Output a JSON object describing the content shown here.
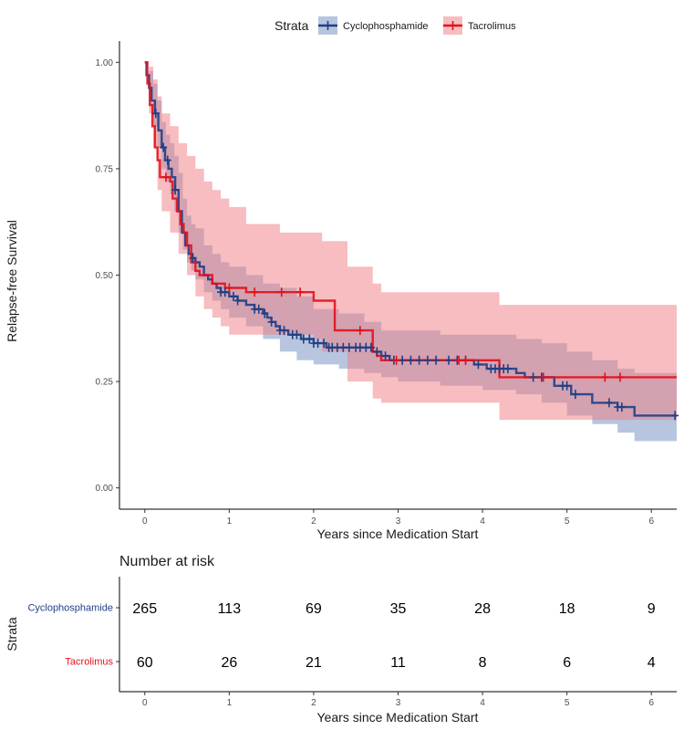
{
  "legend": {
    "title": "Strata",
    "items": [
      {
        "label": "Cyclophosphamide",
        "color": "#1f3f87",
        "fill": "#6f8ebd"
      },
      {
        "label": "Tacrolimus",
        "color": "#e3101b",
        "fill": "#f07b82"
      }
    ]
  },
  "survival_plot": {
    "ylabel": "Relapse-free Survival",
    "xlabel": "Years since Medication Start",
    "xticks": [
      "0",
      "1",
      "2",
      "3",
      "4",
      "5",
      "6"
    ],
    "yticks": [
      "0.00",
      "0.25",
      "0.50",
      "0.75",
      "1.00"
    ]
  },
  "risk_table": {
    "title": "Number at risk",
    "ylabel": "Strata",
    "xlabel": "Years since Medication Start",
    "xticks": [
      "0",
      "1",
      "2",
      "3",
      "4",
      "5",
      "6"
    ],
    "rows": [
      {
        "label": "Cyclophosphamide",
        "color": "#1f3f87",
        "values": [
          "265",
          "113",
          "69",
          "35",
          "28",
          "18",
          "9"
        ]
      },
      {
        "label": "Tacrolimus",
        "color": "#e3101b",
        "values": [
          "60",
          "26",
          "21",
          "11",
          "8",
          "6",
          "4"
        ]
      }
    ]
  },
  "chart_data": {
    "type": "line",
    "title": "",
    "xlabel": "Years since Medication Start",
    "ylabel": "Relapse-free Survival",
    "xlim": [
      -0.3,
      6.3
    ],
    "ylim": [
      -0.05,
      1.05
    ],
    "grid": false,
    "legend_position": "top",
    "series": [
      {
        "name": "Cyclophosphamide",
        "color": "#1f3f87",
        "band_color": "#6f8ebd",
        "steps": [
          [
            0,
            1.0
          ],
          [
            0.02,
            0.97
          ],
          [
            0.05,
            0.94
          ],
          [
            0.08,
            0.91
          ],
          [
            0.12,
            0.88
          ],
          [
            0.16,
            0.84
          ],
          [
            0.2,
            0.8
          ],
          [
            0.24,
            0.77
          ],
          [
            0.28,
            0.75
          ],
          [
            0.32,
            0.73
          ],
          [
            0.36,
            0.7
          ],
          [
            0.4,
            0.65
          ],
          [
            0.44,
            0.6
          ],
          [
            0.48,
            0.57
          ],
          [
            0.52,
            0.55
          ],
          [
            0.56,
            0.54
          ],
          [
            0.6,
            0.53
          ],
          [
            0.65,
            0.52
          ],
          [
            0.7,
            0.5
          ],
          [
            0.75,
            0.49
          ],
          [
            0.8,
            0.48
          ],
          [
            0.85,
            0.47
          ],
          [
            0.9,
            0.46
          ],
          [
            1.0,
            0.45
          ],
          [
            1.1,
            0.44
          ],
          [
            1.2,
            0.43
          ],
          [
            1.3,
            0.42
          ],
          [
            1.4,
            0.41
          ],
          [
            1.45,
            0.4
          ],
          [
            1.5,
            0.39
          ],
          [
            1.55,
            0.38
          ],
          [
            1.6,
            0.37
          ],
          [
            1.7,
            0.36
          ],
          [
            1.85,
            0.35
          ],
          [
            2.0,
            0.34
          ],
          [
            2.15,
            0.33
          ],
          [
            2.4,
            0.33
          ],
          [
            2.7,
            0.32
          ],
          [
            2.8,
            0.31
          ],
          [
            2.9,
            0.3
          ],
          [
            3.3,
            0.3
          ],
          [
            3.5,
            0.3
          ],
          [
            3.9,
            0.29
          ],
          [
            4.05,
            0.28
          ],
          [
            4.4,
            0.27
          ],
          [
            4.5,
            0.26
          ],
          [
            4.85,
            0.24
          ],
          [
            5.05,
            0.22
          ],
          [
            5.3,
            0.2
          ],
          [
            5.6,
            0.19
          ],
          [
            5.8,
            0.17
          ],
          [
            6.3,
            0.17
          ]
        ],
        "lower": [
          [
            0,
            1.0
          ],
          [
            0.05,
            0.91
          ],
          [
            0.1,
            0.85
          ],
          [
            0.15,
            0.8
          ],
          [
            0.2,
            0.75
          ],
          [
            0.25,
            0.72
          ],
          [
            0.3,
            0.69
          ],
          [
            0.35,
            0.65
          ],
          [
            0.4,
            0.6
          ],
          [
            0.45,
            0.56
          ],
          [
            0.5,
            0.53
          ],
          [
            0.55,
            0.51
          ],
          [
            0.6,
            0.49
          ],
          [
            0.7,
            0.46
          ],
          [
            0.8,
            0.44
          ],
          [
            0.9,
            0.42
          ],
          [
            1.0,
            0.4
          ],
          [
            1.2,
            0.38
          ],
          [
            1.4,
            0.35
          ],
          [
            1.6,
            0.32
          ],
          [
            1.8,
            0.3
          ],
          [
            2.0,
            0.29
          ],
          [
            2.3,
            0.28
          ],
          [
            2.6,
            0.27
          ],
          [
            2.8,
            0.26
          ],
          [
            3.0,
            0.25
          ],
          [
            3.5,
            0.24
          ],
          [
            4.0,
            0.23
          ],
          [
            4.4,
            0.22
          ],
          [
            4.7,
            0.2
          ],
          [
            5.0,
            0.17
          ],
          [
            5.3,
            0.15
          ],
          [
            5.6,
            0.13
          ],
          [
            5.8,
            0.11
          ],
          [
            6.3,
            0.11
          ]
        ],
        "upper": [
          [
            0,
            1.0
          ],
          [
            0.05,
            0.98
          ],
          [
            0.1,
            0.95
          ],
          [
            0.15,
            0.91
          ],
          [
            0.2,
            0.86
          ],
          [
            0.25,
            0.83
          ],
          [
            0.3,
            0.81
          ],
          [
            0.35,
            0.78
          ],
          [
            0.4,
            0.74
          ],
          [
            0.45,
            0.68
          ],
          [
            0.5,
            0.64
          ],
          [
            0.55,
            0.62
          ],
          [
            0.6,
            0.61
          ],
          [
            0.7,
            0.57
          ],
          [
            0.8,
            0.55
          ],
          [
            0.9,
            0.53
          ],
          [
            1.0,
            0.52
          ],
          [
            1.2,
            0.5
          ],
          [
            1.4,
            0.48
          ],
          [
            1.6,
            0.47
          ],
          [
            1.8,
            0.45
          ],
          [
            2.0,
            0.42
          ],
          [
            2.3,
            0.41
          ],
          [
            2.6,
            0.39
          ],
          [
            2.8,
            0.37
          ],
          [
            3.0,
            0.37
          ],
          [
            3.5,
            0.36
          ],
          [
            4.0,
            0.36
          ],
          [
            4.4,
            0.35
          ],
          [
            4.7,
            0.34
          ],
          [
            5.0,
            0.32
          ],
          [
            5.3,
            0.3
          ],
          [
            5.6,
            0.28
          ],
          [
            5.8,
            0.27
          ],
          [
            6.3,
            0.27
          ]
        ],
        "censor": [
          0.13,
          0.22,
          0.27,
          0.36,
          0.57,
          0.9,
          0.95,
          1.05,
          1.1,
          1.3,
          1.35,
          1.42,
          1.5,
          1.6,
          1.65,
          1.75,
          1.8,
          1.88,
          1.95,
          2.0,
          2.05,
          2.12,
          2.18,
          2.22,
          2.28,
          2.35,
          2.42,
          2.5,
          2.55,
          2.62,
          2.68,
          2.75,
          2.85,
          2.95,
          3.05,
          3.15,
          3.25,
          3.35,
          3.45,
          3.6,
          3.7,
          3.8,
          3.95,
          4.1,
          4.15,
          4.2,
          4.25,
          4.3,
          4.6,
          4.7,
          4.95,
          5.0,
          5.1,
          5.5,
          5.6,
          5.65,
          6.28
        ]
      },
      {
        "name": "Tacrolimus",
        "color": "#e3101b",
        "band_color": "#f07b82",
        "steps": [
          [
            0,
            1.0
          ],
          [
            0.03,
            0.95
          ],
          [
            0.06,
            0.9
          ],
          [
            0.09,
            0.85
          ],
          [
            0.12,
            0.8
          ],
          [
            0.15,
            0.77
          ],
          [
            0.18,
            0.73
          ],
          [
            0.3,
            0.72
          ],
          [
            0.33,
            0.68
          ],
          [
            0.38,
            0.65
          ],
          [
            0.42,
            0.62
          ],
          [
            0.46,
            0.6
          ],
          [
            0.5,
            0.57
          ],
          [
            0.55,
            0.53
          ],
          [
            0.6,
            0.51
          ],
          [
            0.65,
            0.5
          ],
          [
            0.8,
            0.48
          ],
          [
            0.95,
            0.47
          ],
          [
            1.1,
            0.47
          ],
          [
            1.2,
            0.46
          ],
          [
            2.0,
            0.44
          ],
          [
            2.25,
            0.37
          ],
          [
            2.7,
            0.32
          ],
          [
            2.75,
            0.31
          ],
          [
            2.8,
            0.3
          ],
          [
            4.2,
            0.26
          ],
          [
            6.3,
            0.26
          ]
        ],
        "lower": [
          [
            0,
            1.0
          ],
          [
            0.05,
            0.88
          ],
          [
            0.1,
            0.8
          ],
          [
            0.15,
            0.7
          ],
          [
            0.2,
            0.65
          ],
          [
            0.3,
            0.6
          ],
          [
            0.4,
            0.55
          ],
          [
            0.5,
            0.5
          ],
          [
            0.6,
            0.45
          ],
          [
            0.7,
            0.42
          ],
          [
            0.8,
            0.4
          ],
          [
            0.9,
            0.38
          ],
          [
            1.0,
            0.36
          ],
          [
            1.2,
            0.36
          ],
          [
            1.6,
            0.36
          ],
          [
            2.0,
            0.35
          ],
          [
            2.1,
            0.32
          ],
          [
            2.4,
            0.25
          ],
          [
            2.7,
            0.21
          ],
          [
            2.8,
            0.2
          ],
          [
            4.2,
            0.16
          ],
          [
            6.3,
            0.16
          ]
        ],
        "upper": [
          [
            0,
            1.0
          ],
          [
            0.05,
            0.99
          ],
          [
            0.1,
            0.96
          ],
          [
            0.15,
            0.92
          ],
          [
            0.2,
            0.88
          ],
          [
            0.3,
            0.85
          ],
          [
            0.4,
            0.81
          ],
          [
            0.5,
            0.78
          ],
          [
            0.6,
            0.75
          ],
          [
            0.7,
            0.72
          ],
          [
            0.8,
            0.7
          ],
          [
            0.9,
            0.68
          ],
          [
            1.0,
            0.66
          ],
          [
            1.2,
            0.62
          ],
          [
            1.6,
            0.6
          ],
          [
            2.0,
            0.6
          ],
          [
            2.1,
            0.58
          ],
          [
            2.4,
            0.52
          ],
          [
            2.7,
            0.48
          ],
          [
            2.8,
            0.46
          ],
          [
            4.2,
            0.43
          ],
          [
            6.3,
            0.43
          ]
        ],
        "censor": [
          0.25,
          1.0,
          1.3,
          1.62,
          1.84,
          2.55,
          2.98,
          3.72,
          3.8,
          4.72,
          5.45,
          5.63
        ]
      }
    ],
    "risk_table": {
      "times": [
        0,
        1,
        2,
        3,
        4,
        5,
        6
      ],
      "Cyclophosphamide": [
        265,
        113,
        69,
        35,
        28,
        18,
        9
      ],
      "Tacrolimus": [
        60,
        26,
        21,
        11,
        8,
        6,
        4
      ]
    }
  }
}
